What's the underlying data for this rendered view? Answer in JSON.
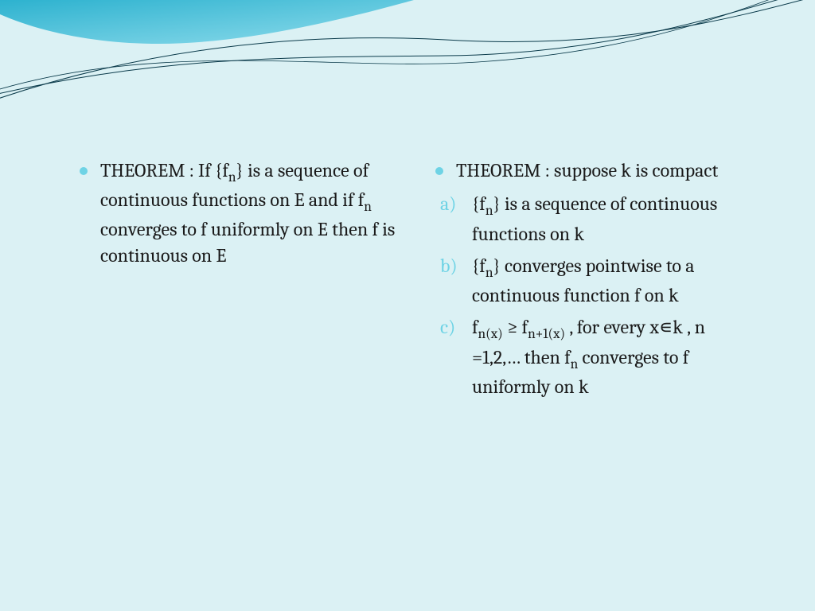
{
  "slide": {
    "background_color": "#dbf1f4",
    "wave": {
      "corner_gradient_from": "#2db2cf",
      "corner_gradient_to": "#8fdcec",
      "stroke_color": "#0a3a4a",
      "stroke_width": 1
    },
    "bullet_color": "#6ed3e5",
    "letter_color": "#6ed3e5",
    "body_text_color": "#1a1a1a",
    "body_font_size_pt": 18,
    "left": {
      "items": [
        {
          "text_html": "THEOREM : If {f<sub>n</sub>} is a sequence of continuous functions on E and if f<sub>n</sub> converges to f uniformly on E then f is continuous on E"
        }
      ]
    },
    "right": {
      "intro_html": "THEOREM : suppose k is compact",
      "items": [
        {
          "marker": "a)",
          "text_html": "{f<sub>n</sub>} is a sequence of continuous functions on k"
        },
        {
          "marker": "b)",
          "text_html": "{f<sub>n</sub>} converges pointwise to a continuous function f on k"
        },
        {
          "marker": "c)",
          "text_html": "f<sub>n(x)</sub> ≥ f<sub>n+1(x)</sub> , for every x∊k , n =1,2,… then f<sub>n</sub> converges to f uniformly on k"
        }
      ]
    }
  }
}
